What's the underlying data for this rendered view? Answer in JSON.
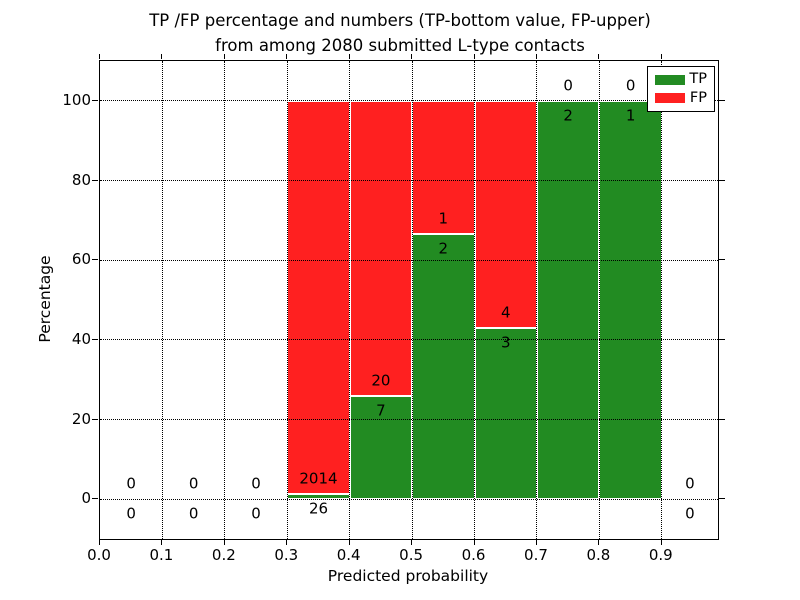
{
  "chart_data": {
    "type": "bar",
    "stacked": true,
    "title": "TP /FP percentage and numbers (TP-bottom value, FP-upper)\nfrom among 2080 submitted L-type contacts",
    "xlabel": "Predicted probability",
    "ylabel": "Percentage",
    "xlim": [
      0.0,
      0.99
    ],
    "ylim": [
      -10,
      110
    ],
    "grid": true,
    "legend_position": "upper right",
    "xticks": [
      0.0,
      0.1,
      0.2,
      0.3,
      0.4,
      0.5,
      0.6,
      0.7,
      0.8,
      0.9
    ],
    "xtick_labels": [
      "0.0",
      "0.1",
      "0.2",
      "0.3",
      "0.4",
      "0.5",
      "0.6",
      "0.7",
      "0.8",
      "0.9"
    ],
    "yticks": [
      0,
      20,
      40,
      60,
      80,
      100
    ],
    "ytick_labels": [
      "0",
      "20",
      "40",
      "60",
      "80",
      "100"
    ],
    "series": [
      {
        "name": "TP",
        "color": "#228b22",
        "stack_position": "bottom"
      },
      {
        "name": "FP",
        "color": "#ff2020",
        "stack_position": "top"
      }
    ],
    "bar_edge_color": "#ffffff",
    "total_contacts": 2080,
    "bins": [
      {
        "range": [
          0.0,
          0.1
        ],
        "tp": 0,
        "fp": 0
      },
      {
        "range": [
          0.1,
          0.2
        ],
        "tp": 0,
        "fp": 0
      },
      {
        "range": [
          0.2,
          0.3
        ],
        "tp": 0,
        "fp": 0
      },
      {
        "range": [
          0.3,
          0.4
        ],
        "tp": 26,
        "fp": 2014
      },
      {
        "range": [
          0.4,
          0.5
        ],
        "tp": 7,
        "fp": 20
      },
      {
        "range": [
          0.5,
          0.6
        ],
        "tp": 2,
        "fp": 1
      },
      {
        "range": [
          0.6,
          0.7
        ],
        "tp": 3,
        "fp": 4
      },
      {
        "range": [
          0.7,
          0.8
        ],
        "tp": 2,
        "fp": 0
      },
      {
        "range": [
          0.8,
          0.9
        ],
        "tp": 1,
        "fp": 0
      },
      {
        "range": [
          0.9,
          1.0
        ],
        "tp": 0,
        "fp": 0
      }
    ]
  }
}
